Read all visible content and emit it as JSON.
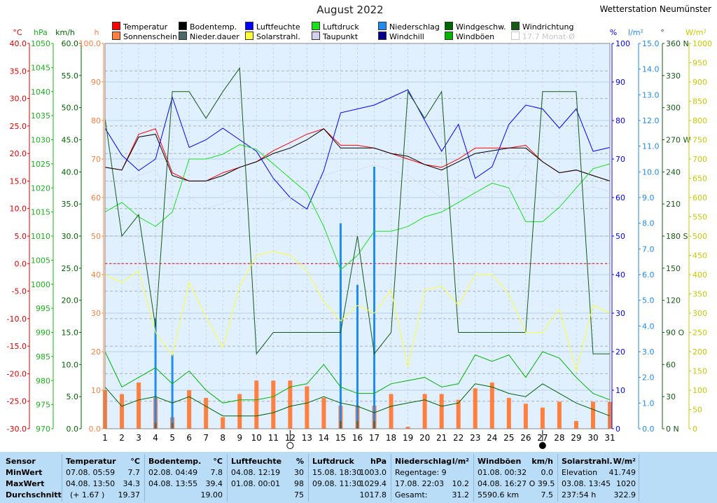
{
  "header": {
    "title": "August 2022",
    "station": "Wetterstation Neumünster"
  },
  "legend": [
    {
      "label": "Temperatur",
      "color": "#ff0000"
    },
    {
      "label": "Sonnenschein",
      "color": "#ff7f3f"
    },
    {
      "label": "Bodentemp.",
      "color": "#000000"
    },
    {
      "label": "Nieder.dauer",
      "color": "#4a6a6a"
    },
    {
      "label": "Luftfeuchte",
      "color": "#0000ff"
    },
    {
      "label": "Solarstrahl.",
      "color": "#ffff33"
    },
    {
      "label": "Luftdruck",
      "color": "#19e119"
    },
    {
      "label": "Taupunkt",
      "color": "#d2d2f0"
    },
    {
      "label": "Niederschlag",
      "color": "#1e8cf0"
    },
    {
      "label": "Windchill",
      "color": "#00008b"
    },
    {
      "label": "Windgeschw.",
      "color": "#006400"
    },
    {
      "label": "Windböen",
      "color": "#00b400"
    },
    {
      "label": "Windrichtung",
      "color": "#145a14"
    },
    {
      "label": "17.7 Monat-Ø",
      "color": "#ffffff",
      "disabled": true
    }
  ],
  "chart_data": {
    "type": "line",
    "x": [
      1,
      2,
      3,
      4,
      5,
      6,
      7,
      8,
      9,
      10,
      11,
      12,
      13,
      14,
      15,
      16,
      17,
      18,
      19,
      20,
      21,
      22,
      23,
      24,
      25,
      26,
      27,
      28,
      29,
      30,
      31
    ],
    "axes": [
      {
        "unit": "°C",
        "min": -30,
        "max": 40,
        "ticks": [
          "-30.0",
          "-25.0",
          "-20.0",
          "-15.0",
          "-10.0",
          "-5.0",
          "0.0",
          "5.0",
          "10.0",
          "15.0",
          "20.0",
          "25.0",
          "30.0",
          "35.0",
          "40.0"
        ],
        "color": "#e00000"
      },
      {
        "unit": "hPa",
        "min": 970,
        "max": 1050,
        "ticks": [
          "970",
          "975",
          "980",
          "985",
          "990",
          "995",
          "1000",
          "1005",
          "1010",
          "1015",
          "1020",
          "1025",
          "1030",
          "1035",
          "1040",
          "1045",
          "1050"
        ],
        "color": "#19b419"
      },
      {
        "unit": "km/h",
        "min": 0,
        "max": 60,
        "ticks": [
          "0.0",
          "5.0",
          "10.0",
          "15.0",
          "20.0",
          "25.0",
          "30.0",
          "35.0",
          "40.0",
          "45.0",
          "50.0",
          "55.0",
          "60.0"
        ],
        "color": "#006400"
      },
      {
        "unit": "h",
        "min": 0,
        "max": 100,
        "ticks": [
          "0.0",
          "10",
          "20",
          "30",
          "40",
          "50",
          "60",
          "70",
          "80",
          "90",
          "100.0"
        ],
        "color": "#ff7f3f"
      },
      {
        "unit": "%",
        "min": 0,
        "max": 100,
        "ticks": [
          "0",
          "10",
          "20",
          "30",
          "40",
          "50",
          "60",
          "70",
          "80",
          "90",
          "100"
        ],
        "color": "#0000ff"
      },
      {
        "unit": "l/m²",
        "min": 0,
        "max": 15,
        "ticks": [
          "0.0",
          "1.0",
          "2.0",
          "3.0",
          "4.0",
          "5.0",
          "6.0",
          "7.0",
          "8.0",
          "9.0",
          "10.0",
          "11.0",
          "12.0",
          "13.0",
          "14.0",
          "15.0"
        ],
        "color": "#1e8cf0"
      },
      {
        "unit": "°",
        "min": 0,
        "max": 360,
        "ticks": [
          "0 N",
          "30",
          "60",
          "90 O",
          "120",
          "150",
          "180 S",
          "210",
          "240",
          "270 W",
          "300",
          "330",
          "360 N"
        ],
        "color": "#145a14"
      },
      {
        "unit": "W/m²",
        "min": 0,
        "max": 1000,
        "ticks": [
          "0",
          "50",
          "100",
          "150",
          "200",
          "250",
          "300",
          "350",
          "400",
          "450",
          "500",
          "550",
          "600",
          "650",
          "700",
          "750",
          "800",
          "850",
          "900",
          "950",
          "1000"
        ],
        "color": "#c8c800"
      }
    ],
    "moon_phases": [
      {
        "day": 12,
        "phase": "full"
      },
      {
        "day": 27,
        "phase": "new"
      }
    ],
    "series": [
      {
        "name": "Temperatur",
        "unit": "°C",
        "color": "#ff0000",
        "values": [
          17.5,
          17,
          23.5,
          24.5,
          16.5,
          15,
          15,
          16.5,
          17.5,
          18.5,
          20.5,
          22,
          23.5,
          24.5,
          21.5,
          21.5,
          21,
          20,
          19,
          18,
          17.5,
          19,
          21,
          21,
          21,
          21.5,
          18.5,
          16.5,
          17,
          16,
          15
        ]
      },
      {
        "name": "Bodentemp.",
        "unit": "°C",
        "color": "#000000",
        "values": [
          17.5,
          17,
          23,
          23.5,
          16,
          15,
          15,
          16,
          17.5,
          18.5,
          20,
          21,
          22.5,
          24.5,
          21,
          21,
          21,
          20,
          19.5,
          18,
          17,
          18.5,
          20,
          20.5,
          21,
          21,
          18.5,
          16.5,
          17,
          16,
          15
        ]
      },
      {
        "name": "Luftfeuchte",
        "unit": "%",
        "color": "#0000ff",
        "values": [
          78,
          71,
          67,
          70,
          86,
          73,
          75,
          78,
          75,
          72,
          65,
          60,
          57,
          67,
          82,
          83,
          84,
          86,
          88,
          80,
          72,
          79,
          65,
          68,
          79,
          84,
          83,
          78,
          83,
          72,
          73
        ]
      },
      {
        "name": "Luftdruck",
        "unit": "hPa",
        "color": "#19e119",
        "values": [
          1015,
          1017,
          1014,
          1012,
          1015,
          1026,
          1026,
          1027,
          1029,
          1028,
          1025,
          1022,
          1019,
          1012,
          1003,
          1006,
          1011,
          1011,
          1012,
          1014,
          1015,
          1017,
          1019,
          1021,
          1020,
          1013,
          1013,
          1016,
          1020,
          1024,
          1025
        ]
      },
      {
        "name": "Taupunkt",
        "unit": "°C",
        "color": "#d2d2f0",
        "values": [
          15,
          14.5,
          16,
          17,
          12,
          12,
          10,
          11,
          12,
          11,
          11,
          12,
          12.5,
          16,
          17,
          17,
          18,
          17,
          16,
          14,
          12,
          14,
          13,
          13,
          13,
          18,
          14,
          12,
          13,
          14,
          13
        ]
      },
      {
        "name": "Windgeschw.",
        "unit": "km/h",
        "color": "#006400",
        "values": [
          6.5,
          3.5,
          4.5,
          5,
          4,
          5,
          3.5,
          2,
          2,
          2,
          2.5,
          3.5,
          4,
          5,
          4,
          3.5,
          2.5,
          3.5,
          4,
          4.5,
          3.5,
          4,
          7,
          6.5,
          5.5,
          5,
          7,
          5.5,
          4,
          3,
          2
        ]
      },
      {
        "name": "Windböen",
        "unit": "km/h",
        "color": "#00b400",
        "values": [
          12,
          6.5,
          8,
          9.5,
          7,
          9,
          6,
          4,
          4.5,
          4.5,
          5,
          6.5,
          7,
          10,
          6.5,
          5.5,
          5.5,
          7,
          7.5,
          8,
          6.5,
          7,
          11.5,
          10.5,
          11.5,
          8,
          12,
          11,
          8,
          5.5,
          4.5
        ]
      },
      {
        "name": "Windrichtung",
        "unit": "°",
        "color": "#145a14",
        "values": [
          290,
          180,
          200,
          95,
          315,
          315,
          290,
          315,
          337,
          70,
          90,
          90,
          90,
          90,
          90,
          180,
          70,
          90,
          315,
          290,
          315,
          90,
          90,
          90,
          90,
          90,
          315,
          315,
          315,
          70,
          70
        ]
      },
      {
        "name": "Solarstrahl.",
        "unit": "W/m²",
        "color": "#ffff33",
        "values": [
          400,
          380,
          410,
          250,
          190,
          380,
          290,
          210,
          370,
          450,
          460,
          450,
          410,
          330,
          280,
          320,
          300,
          360,
          160,
          360,
          370,
          320,
          400,
          400,
          350,
          250,
          250,
          310,
          150,
          320,
          300
        ]
      }
    ],
    "bars": [
      {
        "name": "Sonnenschein",
        "unit": "h",
        "color": "#ff7f3f",
        "values": [
          10,
          9,
          12,
          8,
          3,
          10,
          8,
          3,
          9,
          12.5,
          12.5,
          12.5,
          11,
          8,
          6,
          6,
          6,
          9,
          0.5,
          9,
          9,
          7.5,
          10.5,
          12,
          8,
          6.5,
          5.5,
          7,
          2,
          7,
          7
        ]
      },
      {
        "name": "Niederschlag",
        "unit": "l/m²",
        "color": "#1e8cf0",
        "values": [
          0,
          0,
          0,
          4.3,
          2.9,
          0,
          0,
          0,
          0,
          0,
          0,
          0,
          0,
          0,
          8,
          5.6,
          10.2,
          0,
          0,
          0,
          0,
          0,
          0,
          0,
          0,
          0,
          0,
          0,
          0,
          0,
          0
        ]
      },
      {
        "name": "Nieder.dauer",
        "unit": "h",
        "color": "#4a6a6a",
        "values": [
          0,
          0,
          0,
          1.5,
          1.5,
          0,
          0,
          0,
          0,
          0,
          0,
          0,
          0,
          0,
          2,
          2,
          2,
          0,
          0,
          0,
          0,
          0,
          0,
          0,
          0,
          0,
          0,
          0,
          0,
          0,
          0
        ]
      }
    ]
  },
  "stats": {
    "sensor": {
      "h1": "Sensor",
      "h2": "",
      "r1": "MinWert",
      "r2": "MaxWert",
      "r3": "Durchschnitt"
    },
    "temp": {
      "label": "Temperatur",
      "unit": "°C",
      "r1a": "07.08.  05:59",
      "r1b": "7.7",
      "r2a": "04.08.  13:50",
      "r2b": "34.3",
      "r3a": "(+ 1.67 )",
      "r3b": "19.37"
    },
    "soil": {
      "label": "Bodentemp.",
      "unit": "°C",
      "r1a": "02.08.  04:49",
      "r1b": "7.8",
      "r2a": "04.08.  13:55",
      "r2b": "39.4",
      "r3a": "",
      "r3b": "19.00"
    },
    "hum": {
      "label": "Luftfeuchte",
      "unit": "%",
      "r1a": "04.08.  12:19",
      "r1b": "30",
      "r2a": "01.08.  00:01",
      "r2b": "98",
      "r3a": "",
      "r3b": "75"
    },
    "press": {
      "label": "Luftdruck",
      "unit": "hPa",
      "r1a": "15.08.  18:30",
      "r1b": "1003.0",
      "r2a": "09.08.  11:30",
      "r2b": "1029.4",
      "r3a": "",
      "r3b": "1017.8"
    },
    "rain": {
      "label": "Niederschlag",
      "unit": "l/m²",
      "r1a": "Regentage: 9",
      "r1b": "",
      "r2a": "17.08.  22:03",
      "r2b": "10.2",
      "r3a": "Gesamt:",
      "r3b": "31.2"
    },
    "gust": {
      "label": "Windböen",
      "unit": "km/h",
      "r1a": "01.08.  00:32",
      "r1b": "0.0",
      "r2a": "04.08.  16:27  O 39.5",
      "r2b": "",
      "r3a": "5590.6 km",
      "r3b": "7.5"
    },
    "solar": {
      "label": "Solarstrahl.",
      "unit": "W/m²",
      "r1a": "Elevation",
      "r1b": "41.749",
      "r2a": "03.08.  13:45",
      "r2b": "1020",
      "r3a": "237:54 h",
      "r3b": "322.9"
    }
  }
}
